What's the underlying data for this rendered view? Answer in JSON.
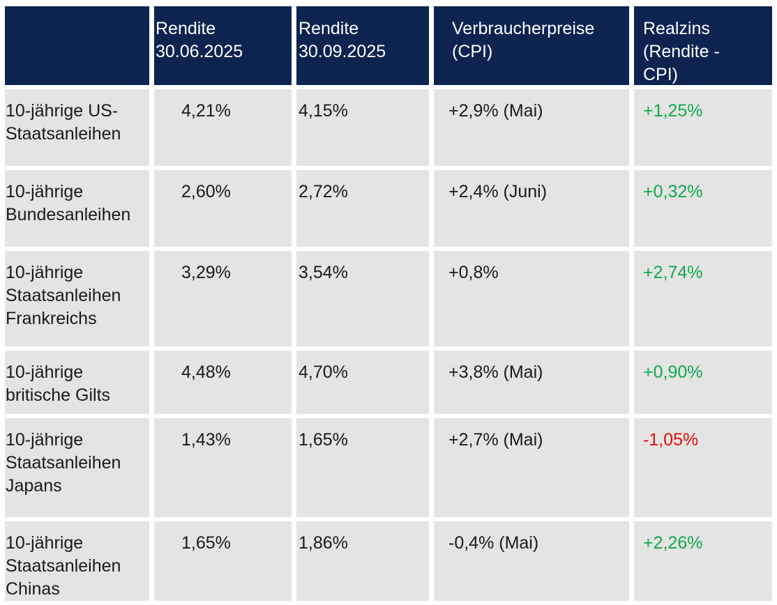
{
  "colors": {
    "header_bg": "#0d2451",
    "row_bg": "#e4e4e2",
    "header_text": "#ffffff",
    "body_text": "#1a1a1a",
    "positive": "#10a84f",
    "negative": "#e20d0d",
    "page_bg": "#ffffff"
  },
  "table": {
    "header": [
      "",
      "Rendite 30.06.2025",
      "Rendite 30.09.2025",
      "Verbraucherpreise (CPI)",
      "Realzins (Rendite - CPI)"
    ],
    "rows": [
      {
        "cells": [
          "10-jährige US-Staatsanleihen",
          "4,21%",
          "4,15%",
          "+2,9% (Mai)",
          "+1,25%"
        ],
        "sentiment": "positive"
      },
      {
        "cells": [
          "10-jährige Bundesanleihen",
          "2,60%",
          "2,72%",
          "+2,4% (Juni)",
          "+0,32%"
        ],
        "sentiment": "positive"
      },
      {
        "cells": [
          "10-jährige Staatsanleihen Frankreichs",
          "3,29%",
          "3,54%",
          "+0,8%",
          "+2,74%"
        ],
        "sentiment": "positive"
      },
      {
        "cells": [
          "10-jährige britische Gilts",
          "4,48%",
          "4,70%",
          "+3,8% (Mai)",
          "+0,90%"
        ],
        "sentiment": "positive"
      },
      {
        "cells": [
          "10-jährige Staatsanleihen Japans",
          "1,43%",
          "1,65%",
          "+2,7% (Mai)",
          "-1,05%"
        ],
        "sentiment": "negative"
      },
      {
        "cells": [
          "10-jährige Staatsanleihen Chinas",
          "1,65%",
          "1,86%",
          "-0,4% (Mai)",
          "+2,26%"
        ],
        "sentiment": "positive"
      }
    ]
  },
  "chart_data": {
    "type": "table",
    "title": "",
    "columns": [
      "",
      "Rendite 30.06.2025",
      "Rendite 30.09.2025",
      "Verbraucherpreise (CPI)",
      "Realzins (Rendite - CPI)"
    ],
    "rows": [
      [
        "10-jährige US-Staatsanleihen",
        "4,21%",
        "4,15%",
        "+2,9% (Mai)",
        "+1,25%"
      ],
      [
        "10-jährige Bundesanleihen",
        "2,60%",
        "2,72%",
        "+2,4% (Juni)",
        "+0,32%"
      ],
      [
        "10-jährige Staatsanleihen Frankreichs",
        "3,29%",
        "3,54%",
        "+0,8%",
        "+2,74%"
      ],
      [
        "10-jährige britische Gilts",
        "4,48%",
        "4,70%",
        "+3,8% (Mai)",
        "+0,90%"
      ],
      [
        "10-jährige Staatsanleihen Japans",
        "1,43%",
        "1,65%",
        "+2,7% (Mai)",
        "-1,05%"
      ],
      [
        "10-jährige Staatsanleihen Chinas",
        "1,65%",
        "1,86%",
        "-0,4% (Mai)",
        "+2,26%"
      ]
    ],
    "numeric": {
      "rendite_2025_06_30_pct": [
        4.21,
        2.6,
        3.29,
        4.48,
        1.43,
        1.65
      ],
      "rendite_2025_09_30_pct": [
        4.15,
        2.72,
        3.54,
        4.7,
        1.65,
        1.86
      ],
      "cpi_pct": [
        2.9,
        2.4,
        0.8,
        3.8,
        2.7,
        -0.4
      ],
      "realzins_pct": [
        1.25,
        0.32,
        2.74,
        0.9,
        -1.05,
        2.26
      ]
    },
    "layout_hints": {
      "header_style": "dark-navy, white text, top-aligned",
      "row_style": "light-gray cells separated by white gaps",
      "realzins_color_rule": "green if positive, red if negative"
    }
  }
}
